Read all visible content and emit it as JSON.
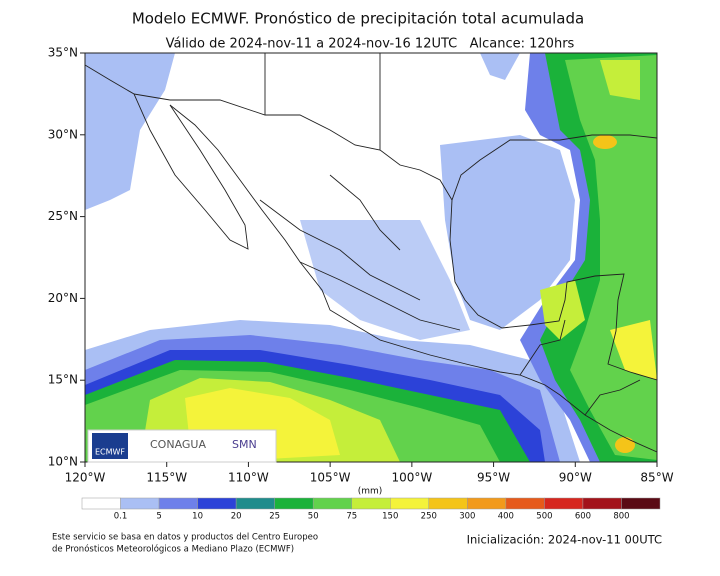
{
  "title": "Modelo ECMWF. Pronóstico de precipitación total acumulada",
  "subtitle": "Válido de 2024-nov-11 a 2024-nov-16 12UTC   Alcance: 120hrs",
  "map": {
    "lat_ticks": [
      "35°N",
      "30°N",
      "25°N",
      "20°N",
      "15°N",
      "10°N"
    ],
    "lon_ticks": [
      "120°W",
      "115°W",
      "110°W",
      "105°W",
      "100°W",
      "95°W",
      "90°W",
      "85°W"
    ]
  },
  "logos": [
    "ECMWF",
    "CONAGUA",
    "SMN"
  ],
  "legend": {
    "unit": "(mm)",
    "levels": [
      "0.1",
      "5",
      "10",
      "20",
      "25",
      "50",
      "75",
      "150",
      "250",
      "300",
      "400",
      "500",
      "600",
      "800"
    ],
    "colors": [
      "#ffffff",
      "#aabff4",
      "#6e80ea",
      "#2c42d8",
      "#1f8c8c",
      "#1bb23a",
      "#62d24c",
      "#c5ee3a",
      "#f4f33a",
      "#f4c419",
      "#f29a1b",
      "#e65a1b",
      "#d6261e",
      "#a3121a",
      "#5a0a14"
    ]
  },
  "footer": {
    "source_line1": "Este servicio se basa en datos y productos del Centro Europeo",
    "source_line2": "de Pronósticos Meteorológicos a Mediano Plazo (ECMWF)",
    "init": "Inicialización: 2024-nov-11 00UTC"
  }
}
